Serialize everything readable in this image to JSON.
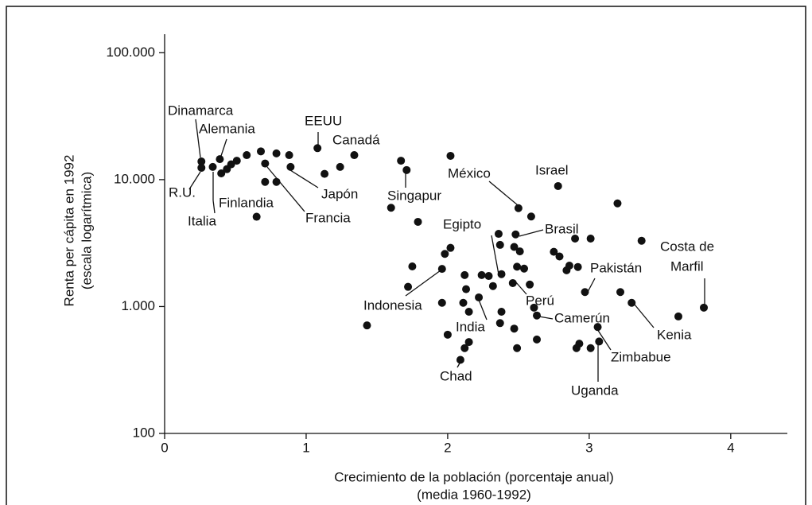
{
  "chart_data": {
    "type": "scatter",
    "ylabel": [
      "Renta per cápita en 1992",
      "(escala logarítmica)"
    ],
    "xlabel": [
      "Crecimiento de la población (porcentaje anual)",
      "(media 1960-1992)"
    ],
    "xlim": [
      0,
      4.4
    ],
    "xticks": [
      0,
      1,
      2,
      3,
      4
    ],
    "ylim": [
      100,
      140000
    ],
    "log_y": true,
    "yticks": [
      100,
      {
        "value": 1000,
        "label": "1.000"
      },
      {
        "value": 10000,
        "label": "10.000"
      },
      {
        "value": 100000,
        "label": "100.000"
      }
    ],
    "color": "#111111",
    "x": [
      0.26,
      0.26,
      0.34,
      0.39,
      0.4,
      0.44,
      0.47,
      0.51,
      0.58,
      0.65,
      0.68,
      0.71,
      0.71,
      0.79,
      0.79,
      0.88,
      0.89,
      1.08,
      1.13,
      1.24,
      1.34,
      1.43,
      1.67,
      1.71,
      1.6,
      1.79,
      1.75,
      1.72,
      2.02,
      2.0,
      1.96,
      2.02,
      1.98,
      2.12,
      2.13,
      1.96,
      2.36,
      2.37,
      2.47,
      2.48,
      2.51,
      2.49,
      2.38,
      2.29,
      2.32,
      2.24,
      2.22,
      2.11,
      2.15,
      2.38,
      2.37,
      2.46,
      2.54,
      2.58,
      2.61,
      2.63,
      2.47,
      2.49,
      2.63,
      2.15,
      2.12,
      2.09,
      2.59,
      2.5,
      2.78,
      2.75,
      2.79,
      2.84,
      2.86,
      2.92,
      2.9,
      3.01,
      2.97,
      3.2,
      3.37,
      3.22,
      3.3,
      3.63,
      3.81,
      3.06,
      3.07,
      3.01,
      2.93,
      2.91
    ],
    "values": [
      13900,
      12400,
      12600,
      14500,
      11200,
      12100,
      13200,
      14100,
      15600,
      5100,
      16700,
      13400,
      9600,
      16100,
      9600,
      15600,
      12600,
      17700,
      11100,
      12600,
      15600,
      710,
      14100,
      11900,
      6000,
      4650,
      2070,
      1430,
      15400,
      600,
      1980,
      2900,
      2600,
      1770,
      1370,
      1070,
      3740,
      3060,
      2950,
      3700,
      2720,
      2060,
      1800,
      1740,
      1450,
      1770,
      1180,
      1070,
      910,
      910,
      740,
      1530,
      1990,
      1490,
      980,
      850,
      670,
      470,
      550,
      525,
      470,
      380,
      5120,
      5960,
      8900,
      2700,
      2480,
      1930,
      2100,
      2050,
      3430,
      3430,
      1300,
      6500,
      3300,
      1300,
      1070,
      835,
      980,
      690,
      530,
      470,
      510,
      470
    ],
    "annotations": [
      "Dinamarca",
      "Alemania",
      "EEUU",
      "Canadá",
      "R.U.",
      "Finlandia",
      "Italia",
      "Japón",
      "Francia",
      "Singapur",
      "México",
      "Israel",
      "Egipto",
      "Brasil",
      "Indonesia",
      "Perú",
      "Camerún",
      "India",
      "Chad",
      "Pakistán",
      "Costa de",
      "Marfil",
      "Kenia",
      "Zimbabue",
      "Uganda"
    ]
  }
}
